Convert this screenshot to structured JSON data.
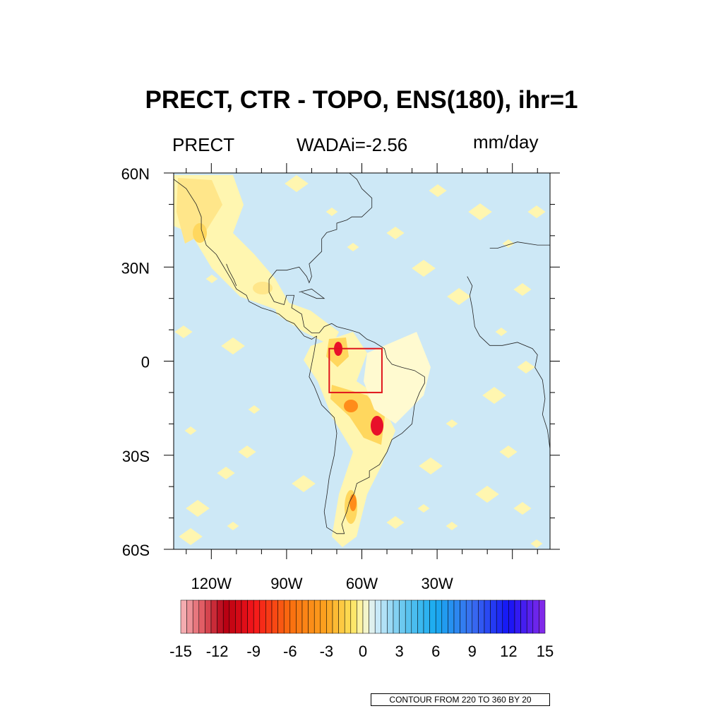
{
  "title": "PRECT, CTR - TOPO, ENS(180), ihr=1",
  "left_subtitle": "PRECT",
  "center_subtitle": "WADAi=-2.56",
  "right_subtitle": "mm/day",
  "map": {
    "lon_range": [
      -135,
      15
    ],
    "lat_range": [
      -60,
      60
    ],
    "lat_labels": [
      {
        "lat": 60,
        "text": "60N"
      },
      {
        "lat": 30,
        "text": "30N"
      },
      {
        "lat": 0,
        "text": "0"
      },
      {
        "lat": -30,
        "text": "30S"
      },
      {
        "lat": -60,
        "text": "60S"
      }
    ],
    "lon_labels": [
      {
        "lon": -120,
        "text": "120W"
      },
      {
        "lon": -90,
        "text": "90W"
      },
      {
        "lon": -60,
        "text": "60W"
      },
      {
        "lon": -30,
        "text": "30W"
      }
    ],
    "box": {
      "lon": [
        -73,
        -52
      ],
      "lat": [
        -10,
        4
      ]
    },
    "colors": {
      "ocean": "#cde8f6",
      "light": "#fff6b0",
      "mid": "#ffd75e",
      "high": "#ff8c1a",
      "peak": "#e8102a",
      "box": "#e0141c"
    }
  },
  "colorbar": {
    "labels": [
      "-15",
      "-12",
      "-9",
      "-6",
      "-3",
      "0",
      "3",
      "6",
      "9",
      "12",
      "15"
    ]
  },
  "contour_note": "CONTOUR FROM 220 TO 360 BY 20"
}
